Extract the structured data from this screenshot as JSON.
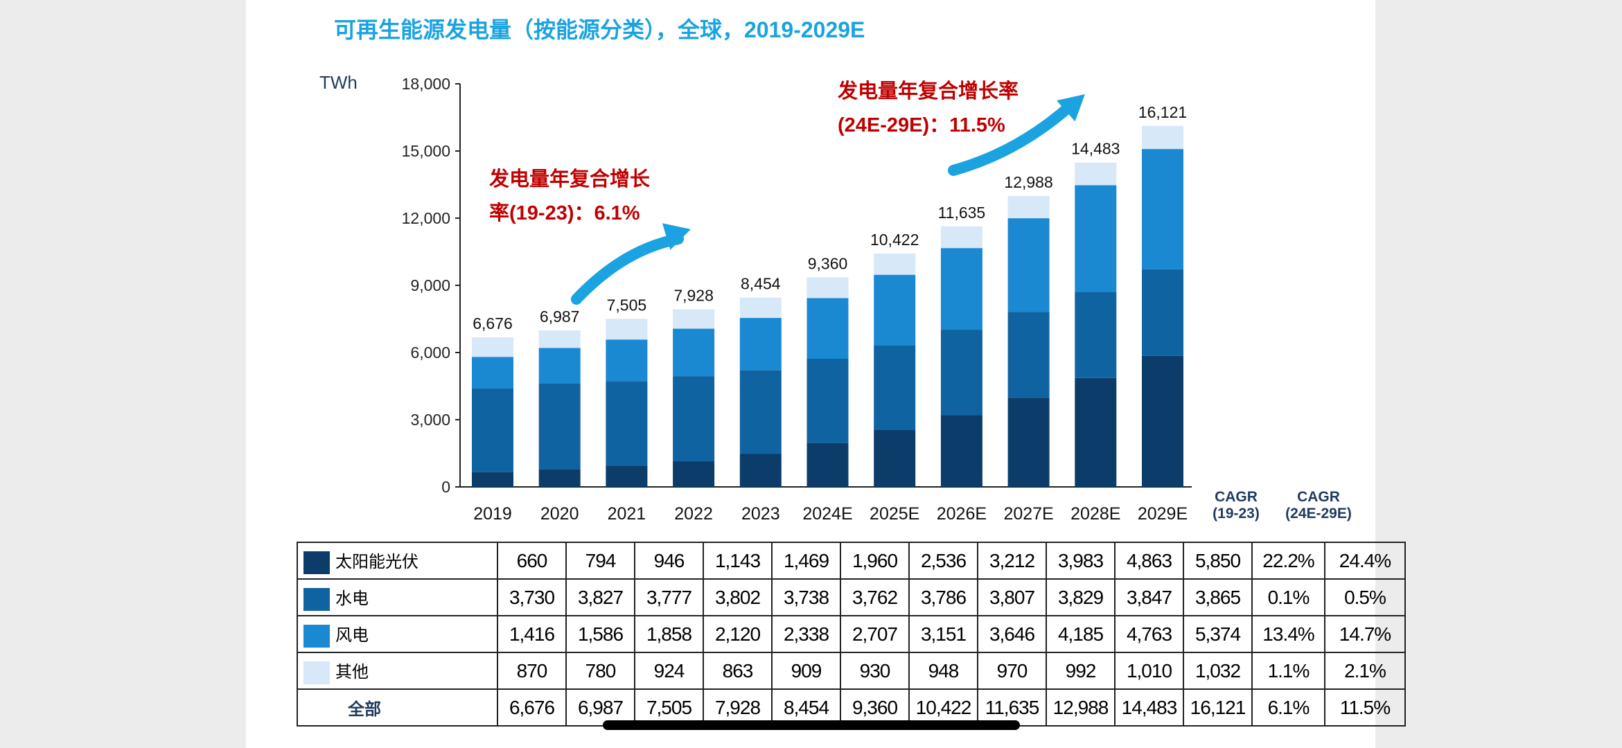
{
  "chart_data": {
    "type": "bar",
    "stacked": true,
    "title": "可再生能源发电量（按能源分类），全球，2019-2029E",
    "ylabel": "TWh",
    "ylim": [
      0,
      18000
    ],
    "yticks": [
      "0",
      "3,000",
      "6,000",
      "9,000",
      "12,000",
      "15,000",
      "18,000"
    ],
    "ytick_values": [
      0,
      3000,
      6000,
      9000,
      12000,
      15000,
      18000
    ],
    "grid": false,
    "categories": [
      "2019",
      "2020",
      "2021",
      "2022",
      "2023",
      "2024E",
      "2025E",
      "2026E",
      "2027E",
      "2028E",
      "2029E"
    ],
    "series": [
      {
        "name": "太阳能光伏",
        "color": "#0b3c6a",
        "values": [
          660,
          794,
          946,
          1143,
          1469,
          1960,
          2536,
          3212,
          3983,
          4863,
          5850
        ],
        "labels": [
          "660",
          "794",
          "946",
          "1,143",
          "1,469",
          "1,960",
          "2,536",
          "3,212",
          "3,983",
          "4,863",
          "5,850"
        ],
        "cagr": [
          "22.2%",
          "24.4%"
        ]
      },
      {
        "name": "水电",
        "color": "#0f63a0",
        "values": [
          3730,
          3827,
          3777,
          3802,
          3738,
          3762,
          3786,
          3807,
          3829,
          3847,
          3865
        ],
        "labels": [
          "3,730",
          "3,827",
          "3,777",
          "3,802",
          "3,738",
          "3,762",
          "3,786",
          "3,807",
          "3,829",
          "3,847",
          "3,865"
        ],
        "cagr": [
          "0.1%",
          "0.5%"
        ]
      },
      {
        "name": "风电",
        "color": "#1b88d2",
        "values": [
          1416,
          1586,
          1858,
          2120,
          2338,
          2707,
          3151,
          3646,
          4185,
          4763,
          5374
        ],
        "labels": [
          "1,416",
          "1,586",
          "1,858",
          "2,120",
          "2,338",
          "2,707",
          "3,151",
          "3,646",
          "4,185",
          "4,763",
          "5,374"
        ],
        "cagr": [
          "13.4%",
          "14.7%"
        ]
      },
      {
        "name": "其他",
        "color": "#d7e8f8",
        "values": [
          870,
          780,
          924,
          863,
          909,
          930,
          948,
          970,
          992,
          1010,
          1032
        ],
        "labels": [
          "870",
          "780",
          "924",
          "863",
          "909",
          "930",
          "948",
          "970",
          "992",
          "1,010",
          "1,032"
        ],
        "cagr": [
          "1.1%",
          "2.1%"
        ]
      }
    ],
    "totals": {
      "name": "全部",
      "values": [
        6676,
        6987,
        7505,
        7928,
        8454,
        9360,
        10422,
        11635,
        12988,
        14483,
        16121
      ],
      "labels": [
        "6,676",
        "6,987",
        "7,505",
        "7,928",
        "8,454",
        "9,360",
        "10,422",
        "11,635",
        "12,988",
        "14,483",
        "16,121"
      ],
      "cagr": [
        "6.1%",
        "11.5%"
      ]
    },
    "cagr_headers": [
      {
        "line1": "CAGR",
        "line2": "(19-23)"
      },
      {
        "line1": "CAGR",
        "line2": "(24E-29E)"
      }
    ],
    "annotations": [
      {
        "line1": "发电量年复合增长",
        "line2": "率(19-23)：6.1%"
      },
      {
        "line1": "发电量年复合增长率",
        "line2": "(24E-29E)：11.5%"
      }
    ],
    "arrow_color": "#1aa3e0",
    "annotation_color": "#c00000"
  }
}
